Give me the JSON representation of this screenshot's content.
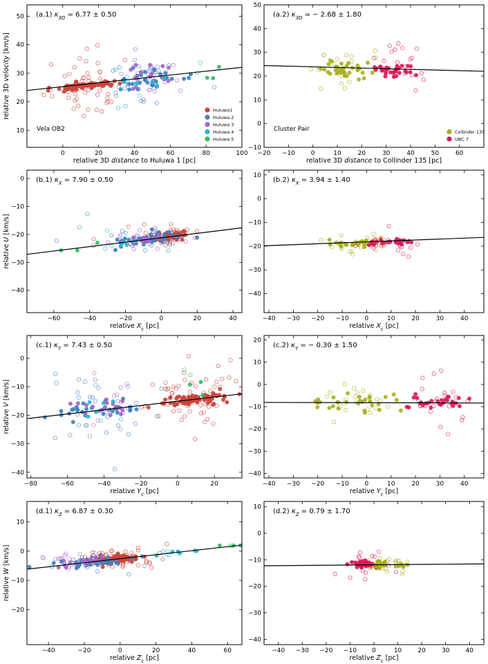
{
  "figure": {
    "legend_left": [
      "Huluwa1",
      "Huluwa 2",
      "Huluwa 3",
      "Huluwa 4",
      "Huluwa 5"
    ],
    "legend_right": [
      "Collinder 135",
      "UBC 7"
    ],
    "colors": {
      "Huluwa1": "#c9453c",
      "Huluwa 2": "#3c84c2",
      "Huluwa 3": "#a466c8",
      "Huluwa 4": "#23b8d0",
      "Huluwa 5": "#34bd69",
      "Collinder 135": "#aab022",
      "UBC 7": "#e0185a"
    },
    "annotation_left": "Vela OB2",
    "annotation_right": "Cluster Pair"
  },
  "chart_data": [
    {
      "id": "a1",
      "type": "scatter",
      "title_prefix": "(a.1)",
      "kappa_sub": "3D",
      "kappa_value": "6.77",
      "kappa_err": "0.50",
      "xlabel_parts": [
        "relative 3D ",
        "distance",
        " to Huluwa 1 [pc]"
      ],
      "ylabel_parts": [
        "relative 3D ",
        "velocity",
        " [km/s]"
      ],
      "xlim": [
        -20,
        100
      ],
      "ylim": [
        4,
        54
      ],
      "xticks": [
        0,
        20,
        40,
        60,
        80,
        100
      ],
      "yticks": [
        10,
        20,
        30,
        40,
        50
      ],
      "fit": {
        "slope": 0.0677,
        "intercept": 25.3
      },
      "legend": "left",
      "annotation": "left",
      "series": [
        {
          "name": "Huluwa1",
          "center": [
            12,
            25.6
          ],
          "spread": [
            7,
            0.6
          ],
          "filled": 70,
          "open": 50,
          "open_spread": [
            10,
            6
          ],
          "seed": 11
        },
        {
          "name": "Huluwa 2",
          "center": [
            45,
            27.5
          ],
          "spread": [
            12,
            1.8
          ],
          "filled": 28,
          "open": 25,
          "open_spread": [
            13,
            5
          ],
          "seed": 12
        },
        {
          "name": "Huluwa 3",
          "center": [
            45,
            29
          ],
          "spread": [
            10,
            2
          ],
          "filled": 18,
          "open": 22,
          "open_spread": [
            10,
            4
          ],
          "seed": 13
        },
        {
          "name": "Huluwa 4",
          "center": [
            40,
            26
          ],
          "spread": [
            8,
            2.5
          ],
          "filled": 5,
          "open": 6,
          "open_spread": [
            8,
            4
          ],
          "seed": 14
        },
        {
          "name": "Huluwa 5",
          "center": [
            80,
            28
          ],
          "spread": [
            2.5,
            2
          ],
          "filled": 3,
          "open": 2,
          "open_spread": [
            3,
            8
          ],
          "seed": 15
        }
      ]
    },
    {
      "id": "a2",
      "type": "scatter",
      "title_prefix": "(a.2)",
      "kappa_sub": "3D",
      "kappa_value": "− 2.68",
      "kappa_err": "1.80",
      "xlabel_parts": [
        "relative 3D ",
        "distance",
        " to Collinder 135 [pc]"
      ],
      "ylabel_parts": [],
      "xlim": [
        -20,
        70
      ],
      "ylim": [
        -10,
        50
      ],
      "xticks": [
        -20,
        -10,
        0,
        10,
        20,
        30,
        40,
        50,
        60
      ],
      "yticks": [
        -10,
        0,
        10,
        20,
        30,
        40,
        50
      ],
      "fit": {
        "slope": -0.0268,
        "intercept": 23.9
      },
      "legend": "right",
      "annotation": "right",
      "series": [
        {
          "name": "Collinder 135",
          "center": [
            12,
            23
          ],
          "spread": [
            6,
            1.5
          ],
          "filled": 35,
          "open": 22,
          "open_spread": [
            7,
            5
          ],
          "seed": 21
        },
        {
          "name": "UBC 7",
          "center": [
            33,
            22.5
          ],
          "spread": [
            5,
            1.5
          ],
          "filled": 30,
          "open": 20,
          "open_spread": [
            6,
            5
          ],
          "seed": 22
        }
      ]
    },
    {
      "id": "b1",
      "type": "scatter",
      "title_prefix": "(b.1)",
      "kappa_sub": "X",
      "kappa_value": "7.90",
      "kappa_err": "0.50",
      "xlabel_parts": [
        "relative ",
        "X_c",
        " [pc]"
      ],
      "ylabel_parts": [
        "relative ",
        "U",
        " [km/s]"
      ],
      "xlim": [
        -75,
        45
      ],
      "ylim": [
        -48,
        3
      ],
      "xticks": [
        -60,
        -40,
        -20,
        0,
        20,
        40
      ],
      "yticks": [
        -40,
        -30,
        -20,
        -10,
        0
      ],
      "fit": {
        "slope": 0.079,
        "intercept": -21.2
      },
      "legend": "none",
      "annotation": "none",
      "series": [
        {
          "name": "Huluwa1",
          "center": [
            3,
            -20.8
          ],
          "spread": [
            6,
            0.7
          ],
          "filled": 60,
          "open": 40,
          "open_spread": [
            10,
            1.8
          ],
          "seed": 31
        },
        {
          "name": "Huluwa 2",
          "center": [
            -6,
            -21.6
          ],
          "spread": [
            9,
            1
          ],
          "filled": 35,
          "open": 25,
          "open_spread": [
            12,
            2
          ],
          "seed": 32
        },
        {
          "name": "Huluwa 3",
          "center": [
            -12,
            -22
          ],
          "spread": [
            7,
            0.9
          ],
          "filled": 18,
          "open": 18,
          "open_spread": [
            10,
            2
          ],
          "seed": 33
        },
        {
          "name": "Huluwa 4",
          "center": [
            -22,
            -23.5
          ],
          "spread": [
            5,
            0.9
          ],
          "filled": 6,
          "open": 4,
          "open_spread": [
            5,
            2
          ],
          "seed": 34
        },
        {
          "name": "Huluwa 5",
          "center": [
            -45,
            -25
          ],
          "spread": [
            6,
            2
          ],
          "filled": 3,
          "open": 2,
          "open_spread": [
            3,
            5
          ],
          "seed": 35
        }
      ]
    },
    {
      "id": "b2",
      "type": "scatter",
      "title_prefix": "(b.2)",
      "kappa_sub": "X",
      "kappa_value": "3.94",
      "kappa_err": "1.40",
      "xlabel_parts": [
        "relative ",
        "X_c",
        " [pc]"
      ],
      "ylabel_parts": [],
      "xlim": [
        -42,
        48
      ],
      "ylim": [
        -48,
        12
      ],
      "xticks": [
        -40,
        -30,
        -20,
        -10,
        0,
        10,
        20,
        30,
        40
      ],
      "yticks": [
        -40,
        -30,
        -20,
        -10,
        0,
        10
      ],
      "fit": {
        "slope": 0.0394,
        "intercept": -18.2
      },
      "legend": "none",
      "annotation": "none",
      "series": [
        {
          "name": "Collinder 135",
          "center": [
            -3,
            -18.5
          ],
          "spread": [
            7,
            0.8
          ],
          "filled": 30,
          "open": 22,
          "open_spread": [
            7,
            2.5
          ],
          "seed": 41
        },
        {
          "name": "UBC 7",
          "center": [
            10,
            -18.2
          ],
          "spread": [
            5,
            0.8
          ],
          "filled": 25,
          "open": 20,
          "open_spread": [
            6,
            2.5
          ],
          "seed": 42
        }
      ]
    },
    {
      "id": "c1",
      "type": "scatter",
      "title_prefix": "(c.1)",
      "kappa_sub": "Y",
      "kappa_value": "7.43",
      "kappa_err": "0.50",
      "xlabel_parts": [
        "relative ",
        "Y_c",
        " [pc]"
      ],
      "ylabel_parts": [
        "relative ",
        "V",
        " [km/s]"
      ],
      "xlim": [
        -82,
        35
      ],
      "ylim": [
        -42,
        8
      ],
      "xticks": [
        -80,
        -60,
        -40,
        -20,
        0,
        20
      ],
      "yticks": [
        -40,
        -30,
        -20,
        -10,
        0
      ],
      "fit": {
        "slope": 0.0743,
        "intercept": -15.1
      },
      "legend": "none",
      "annotation": "none",
      "series": [
        {
          "name": "Huluwa1",
          "center": [
            8,
            -14.5
          ],
          "spread": [
            10,
            1
          ],
          "filled": 75,
          "open": 55,
          "open_spread": [
            14,
            6
          ],
          "seed": 51
        },
        {
          "name": "Huluwa 2",
          "center": [
            -45,
            -18.5
          ],
          "spread": [
            12,
            1.5
          ],
          "filled": 30,
          "open": 25,
          "open_spread": [
            14,
            7
          ],
          "seed": 52
        },
        {
          "name": "Huluwa 3",
          "center": [
            -38,
            -17
          ],
          "spread": [
            8,
            1.5
          ],
          "filled": 16,
          "open": 18,
          "open_spread": [
            10,
            6
          ],
          "seed": 53
        },
        {
          "name": "Huluwa 4",
          "center": [
            -40,
            -17
          ],
          "spread": [
            6,
            2
          ],
          "filled": 5,
          "open": 4,
          "open_spread": [
            8,
            6
          ],
          "seed": 54
        },
        {
          "name": "Huluwa 5",
          "center": [
            8,
            -10
          ],
          "spread": [
            4,
            2.5
          ],
          "filled": 3,
          "open": 2,
          "open_spread": [
            4,
            6
          ],
          "seed": 55
        }
      ]
    },
    {
      "id": "c2",
      "type": "scatter",
      "title_prefix": "(c.2)",
      "kappa_sub": "Y",
      "kappa_value": "− 0.30",
      "kappa_err": "1.50",
      "xlabel_parts": [
        "relative ",
        "Y_c",
        " [pc]"
      ],
      "ylabel_parts": [],
      "xlim": [
        -42,
        48
      ],
      "ylim": [
        -42,
        22
      ],
      "xticks": [
        -40,
        -30,
        -20,
        -10,
        0,
        10,
        20,
        30,
        40
      ],
      "yticks": [
        -40,
        -30,
        -20,
        -10,
        0,
        10,
        20
      ],
      "fit": {
        "slope": -0.003,
        "intercept": -8.2
      },
      "legend": "none",
      "annotation": "none",
      "series": [
        {
          "name": "Collinder 135",
          "center": [
            -3,
            -8
          ],
          "spread": [
            12,
            2
          ],
          "filled": 30,
          "open": 20,
          "open_spread": [
            9,
            5
          ],
          "seed": 61
        },
        {
          "name": "UBC 7",
          "center": [
            28,
            -8.5
          ],
          "spread": [
            6,
            2
          ],
          "filled": 28,
          "open": 22,
          "open_spread": [
            7,
            6
          ],
          "seed": 62
        }
      ]
    },
    {
      "id": "d1",
      "type": "scatter",
      "title_prefix": "(d.1)",
      "kappa_sub": "Z",
      "kappa_value": "6.87",
      "kappa_err": "0.30",
      "xlabel_parts": [
        "relative ",
        "Z_c",
        " [pc]"
      ],
      "ylabel_parts": [
        "relative ",
        "W",
        " [km/s]"
      ],
      "xlim": [
        -52,
        68
      ],
      "ylim": [
        -32,
        17
      ],
      "xticks": [
        -40,
        -20,
        0,
        20,
        40,
        60
      ],
      "yticks": [
        -20,
        -10,
        0,
        10
      ],
      "fit": {
        "slope": 0.0687,
        "intercept": -2.6
      },
      "legend": "none",
      "annotation": "none",
      "series": [
        {
          "name": "Huluwa1",
          "center": [
            -2,
            -2.7
          ],
          "spread": [
            6,
            0.7
          ],
          "filled": 75,
          "open": 55,
          "open_spread": [
            12,
            1.6
          ],
          "seed": 71
        },
        {
          "name": "Huluwa 2",
          "center": [
            -18,
            -4
          ],
          "spread": [
            12,
            0.8
          ],
          "filled": 30,
          "open": 25,
          "open_spread": [
            14,
            1.5
          ],
          "seed": 72
        },
        {
          "name": "Huluwa 3",
          "center": [
            -25,
            -3.5
          ],
          "spread": [
            8,
            1.2
          ],
          "filled": 18,
          "open": 18,
          "open_spread": [
            10,
            2
          ],
          "seed": 73
        },
        {
          "name": "Huluwa 4",
          "center": [
            32,
            -0.6
          ],
          "spread": [
            8,
            0.5
          ],
          "filled": 6,
          "open": 4,
          "open_spread": [
            6,
            1
          ],
          "seed": 74
        },
        {
          "name": "Huluwa 5",
          "center": [
            60,
            1.6
          ],
          "spread": [
            4,
            0.5
          ],
          "filled": 3,
          "open": 2,
          "open_spread": [
            4,
            1
          ],
          "seed": 75
        }
      ]
    },
    {
      "id": "d2",
      "type": "scatter",
      "title_prefix": "(d.2)",
      "kappa_sub": "Z",
      "kappa_value": "0.79",
      "kappa_err": "1.70",
      "xlabel_parts": [
        "relative ",
        "Z_c",
        " [pc]"
      ],
      "ylabel_parts": [],
      "xlim": [
        -46,
        46
      ],
      "ylim": [
        -42,
        12
      ],
      "xticks": [
        -40,
        -30,
        -20,
        -10,
        0,
        10,
        20,
        30,
        40
      ],
      "yticks": [
        -40,
        -30,
        -20,
        -10,
        0,
        10
      ],
      "fit": {
        "slope": 0.0079,
        "intercept": -11.9
      },
      "legend": "none",
      "annotation": "none",
      "series": [
        {
          "name": "Collinder 135",
          "center": [
            4,
            -12
          ],
          "spread": [
            4,
            0.8
          ],
          "filled": 30,
          "open": 22,
          "open_spread": [
            6,
            1.8
          ],
          "seed": 81
        },
        {
          "name": "UBC 7",
          "center": [
            -5,
            -11.8
          ],
          "spread": [
            2.5,
            0.8
          ],
          "filled": 28,
          "open": 20,
          "open_spread": [
            5,
            2.5
          ],
          "seed": 82
        }
      ]
    }
  ]
}
